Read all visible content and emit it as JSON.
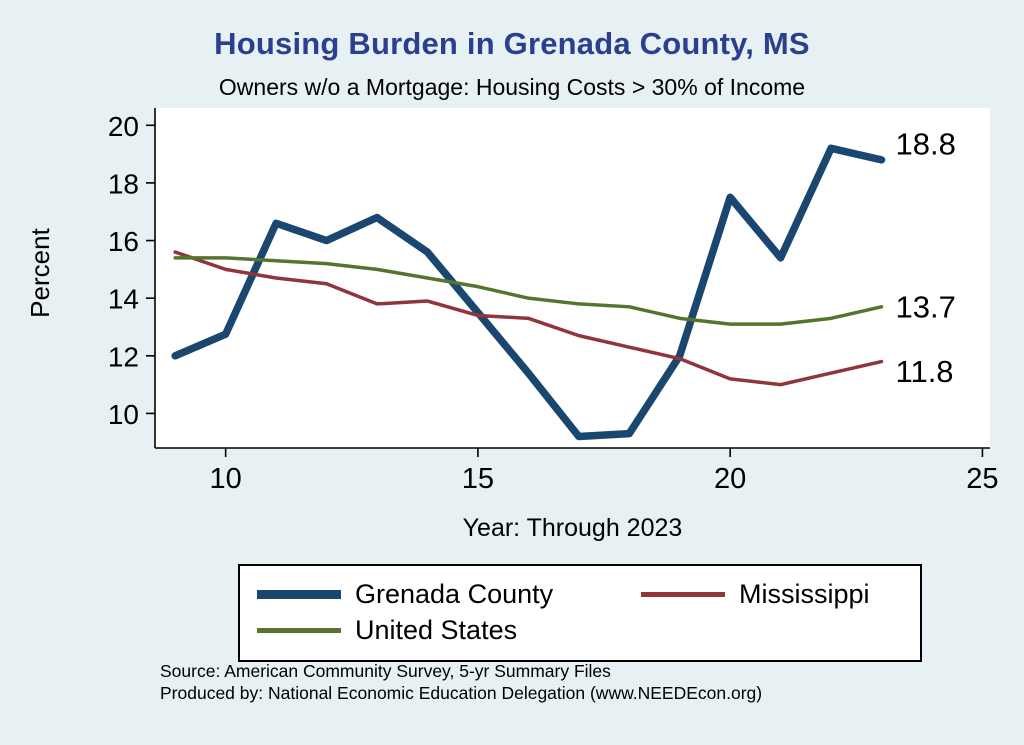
{
  "colors": {
    "background": "#e7f0f2",
    "title": "#2b3f8f",
    "axis": "#000000",
    "plot_background": "#ffffff"
  },
  "header": {
    "title": "Housing Burden in Grenada County, MS",
    "subtitle": "Owners w/o a Mortgage: Housing Costs > 30% of Income"
  },
  "footer": {
    "source_line1": "Source: American Community Survey, 5-yr Summary Files",
    "source_line2": "Produced by: National Economic Education Delegation (www.NEEDEcon.org)"
  },
  "chart_data": {
    "type": "line",
    "title": "Housing Burden in Grenada County, MS",
    "subtitle": "Owners w/o a Mortgage: Housing Costs > 30% of Income",
    "xlabel": "Year: Through 2023",
    "ylabel": "Percent",
    "grid": false,
    "legend_position": "bottom",
    "x": [
      9,
      10,
      11,
      12,
      13,
      14,
      15,
      16,
      17,
      18,
      19,
      20,
      21,
      22,
      23
    ],
    "xticks": [
      10,
      15,
      20,
      25
    ],
    "yticks": [
      10,
      12,
      14,
      16,
      18,
      20
    ],
    "xlim": [
      8.6,
      25.15
    ],
    "ylim": [
      8.8,
      20.6
    ],
    "series": [
      {
        "name": "Grenada County",
        "color": "#1a476f",
        "width": 7.5,
        "end_label": "18.8",
        "label_dy": -16,
        "values": [
          12.0,
          12.75,
          16.6,
          16.0,
          16.8,
          15.6,
          13.5,
          11.4,
          9.2,
          9.3,
          12.0,
          17.5,
          15.4,
          19.2,
          18.8
        ]
      },
      {
        "name": "Mississippi",
        "color": "#90353b",
        "width": 3.5,
        "end_label": "11.8",
        "label_dy": 10,
        "values": [
          15.6,
          15.0,
          14.7,
          14.5,
          13.8,
          13.9,
          13.4,
          13.3,
          12.7,
          12.3,
          11.9,
          11.2,
          11.0,
          11.4,
          11.8
        ]
      },
      {
        "name": "United States",
        "color": "#55752f",
        "width": 3.5,
        "end_label": "13.7",
        "label_dy": 0,
        "values": [
          15.4,
          15.4,
          15.3,
          15.2,
          15.0,
          14.7,
          14.4,
          14.0,
          13.8,
          13.7,
          13.3,
          13.1,
          13.1,
          13.3,
          13.7
        ]
      }
    ]
  }
}
